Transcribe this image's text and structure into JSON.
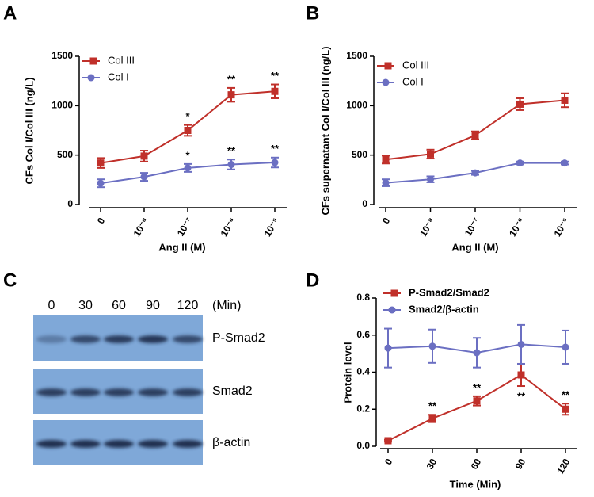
{
  "chart_data": [
    {
      "type": "line",
      "panel": "A",
      "y_label": "CFs Col I/Col III (ng/L)",
      "x_label": "Ang II (M)",
      "categories": [
        "0",
        "10⁻⁸",
        "10⁻⁷",
        "10⁻⁶",
        "10⁻⁵"
      ],
      "ylim": [
        0,
        1500
      ],
      "yticks": [
        0,
        500,
        1000,
        1500
      ],
      "series": [
        {
          "name": "Col III",
          "color": "#c0302a",
          "marker": "square",
          "values": [
            420,
            490,
            750,
            1110,
            1145
          ],
          "errors": [
            50,
            55,
            55,
            70,
            70
          ],
          "annotations": [
            null,
            null,
            "*",
            "**",
            "**"
          ]
        },
        {
          "name": "Col I",
          "color": "#6b6fc2",
          "marker": "circle",
          "values": [
            215,
            280,
            370,
            405,
            425
          ],
          "errors": [
            40,
            40,
            40,
            50,
            50
          ],
          "annotations": [
            null,
            null,
            "*",
            "**",
            "**"
          ]
        }
      ]
    },
    {
      "type": "line",
      "panel": "B",
      "y_label": "CFs supernatant Col I/Col III (ng/L)",
      "x_label": "Ang II (M)",
      "categories": [
        "0",
        "10⁻⁸",
        "10⁻⁷",
        "10⁻⁶",
        "10⁻⁵"
      ],
      "ylim": [
        0,
        1500
      ],
      "yticks": [
        0,
        500,
        1000,
        1500
      ],
      "series": [
        {
          "name": "Col III",
          "color": "#c0302a",
          "marker": "square",
          "values": [
            455,
            510,
            700,
            1015,
            1055
          ],
          "errors": [
            40,
            45,
            40,
            60,
            70
          ]
        },
        {
          "name": "Col I",
          "color": "#6b6fc2",
          "marker": "circle",
          "values": [
            220,
            255,
            320,
            420,
            420
          ],
          "errors": [
            35,
            30,
            20,
            15,
            15
          ]
        }
      ]
    },
    {
      "type": "line",
      "panel": "D",
      "y_label": "Protein level",
      "x_label": "Time (Min)",
      "categories": [
        "0",
        "30",
        "60",
        "90",
        "120"
      ],
      "ylim": [
        0,
        0.8
      ],
      "yticks": [
        {
          "value": 0,
          "label": "0.0"
        },
        0.2,
        0.4,
        0.6,
        0.8
      ],
      "series": [
        {
          "name": "P-Smad2/Smad2",
          "color": "#c0302a",
          "marker": "square",
          "values": [
            0.03,
            0.15,
            0.245,
            0.385,
            0.2
          ],
          "errors": [
            0.005,
            0.02,
            0.025,
            0.06,
            0.03
          ],
          "annotations": [
            null,
            "**",
            "**",
            "**",
            "**"
          ]
        },
        {
          "name": "Smad2/β-actin",
          "color": "#6b6fc2",
          "marker": "circle",
          "values": [
            0.53,
            0.54,
            0.505,
            0.55,
            0.535
          ],
          "errors": [
            0.105,
            0.09,
            0.08,
            0.105,
            0.09
          ]
        }
      ]
    }
  ],
  "blot": {
    "panel": "C",
    "lanes": [
      "0",
      "30",
      "60",
      "90",
      "120"
    ],
    "unit": "(Min)",
    "rows": [
      "P-Smad2",
      "Smad2",
      "β-actin"
    ]
  }
}
